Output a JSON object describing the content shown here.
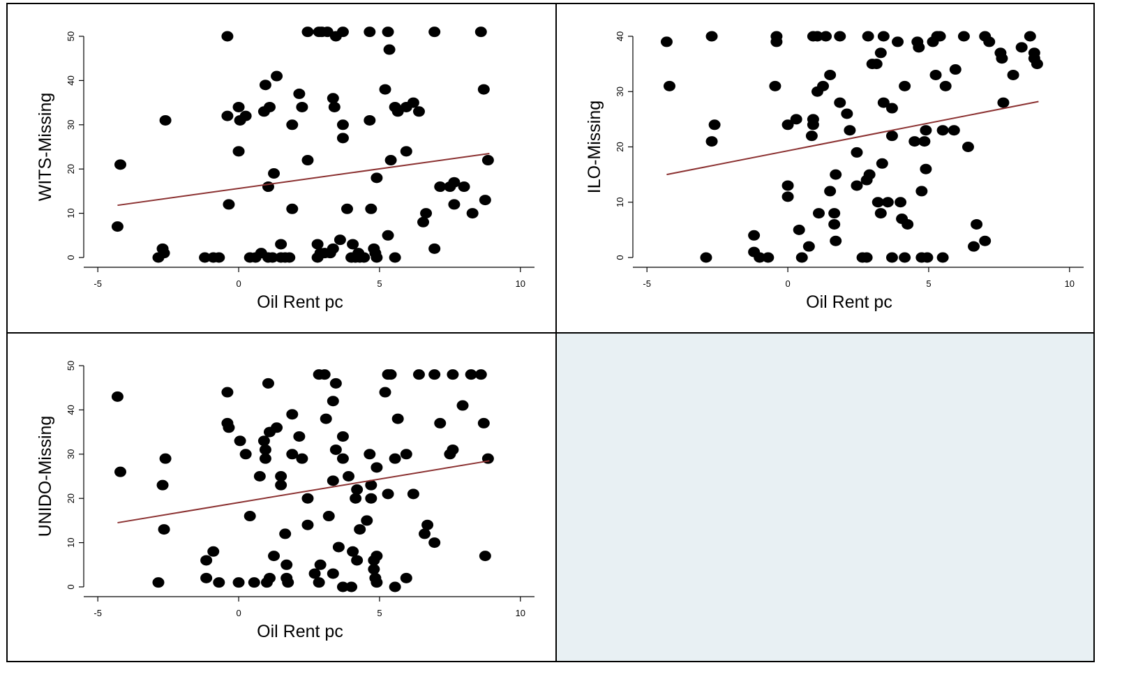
{
  "chart_data": [
    {
      "type": "scatter",
      "x_label": "Oil Rent pc",
      "y_label": "WITS-Missing",
      "color": "#000000",
      "x": [
        -4.3,
        -4.2,
        -2.6,
        -2.7,
        -2.65,
        -2.85,
        -0.4,
        -0.4,
        -0.35,
        -1.2,
        -0.9,
        -0.7,
        0.0,
        0.05,
        0.25,
        0.0,
        0.4,
        0.6,
        0.8,
        0.95,
        0.9,
        1.1,
        1.05,
        1.25,
        1.35,
        1.05,
        1.2,
        1.5,
        1.5,
        1.65,
        1.8,
        1.9,
        1.9,
        2.15,
        2.25,
        2.45,
        2.45,
        2.85,
        2.95,
        3.15,
        3.45,
        3.7,
        3.35,
        3.4,
        3.7,
        3.7,
        3.85,
        3.6,
        3.35,
        3.25,
        2.8,
        2.9,
        2.8,
        3.05,
        4.0,
        4.15,
        4.3,
        4.45,
        4.05,
        4.25,
        4.65,
        4.65,
        4.7,
        4.8,
        4.85,
        4.9,
        4.9,
        5.2,
        5.3,
        5.35,
        5.4,
        5.3,
        5.55,
        5.55,
        5.65,
        5.95,
        6.2,
        6.4,
        5.95,
        6.65,
        6.55,
        6.95,
        6.95,
        7.15,
        7.5,
        7.65,
        7.65,
        8.0,
        8.3,
        8.6,
        8.7,
        8.75,
        8.85
      ],
      "values": [
        7,
        21,
        31,
        2,
        1,
        0,
        50,
        32,
        12,
        0,
        0,
        0,
        34,
        31,
        32,
        24,
        0,
        0,
        1,
        39,
        33,
        34,
        16,
        19,
        41,
        0,
        0,
        3,
        0,
        0,
        0,
        30,
        11,
        37,
        34,
        22,
        51,
        51,
        51,
        51,
        50,
        51,
        36,
        34,
        30,
        27,
        11,
        4,
        2,
        1,
        3,
        1,
        0,
        1,
        0,
        0,
        0,
        0,
        3,
        1,
        51,
        31,
        11,
        2,
        1,
        0,
        18,
        38,
        51,
        47,
        22,
        5,
        0,
        34,
        33,
        34,
        35,
        33,
        24,
        10,
        8,
        51,
        2,
        16,
        16,
        17,
        12,
        16,
        10,
        51,
        38,
        13,
        22
      ],
      "fit": {
        "x": [
          -4.3,
          8.9
        ],
        "values": [
          11.8,
          23.5
        ],
        "color": "#8b3131"
      },
      "xlim": [
        -5.5,
        10.5
      ],
      "ylim": [
        0,
        50
      ],
      "xticks": [
        -5,
        0,
        5,
        10
      ],
      "yticks": [
        0,
        10,
        20,
        30,
        40,
        50
      ]
    },
    {
      "type": "scatter",
      "x_label": "Oil Rent pc",
      "y_label": "ILO-Missing",
      "color": "#000000",
      "x": [
        -4.3,
        -4.2,
        -2.7,
        -2.6,
        -2.7,
        -2.9,
        -1.2,
        -1.2,
        -1.0,
        -0.7,
        -0.45,
        -0.4,
        -0.4,
        0.0,
        0.3,
        0.0,
        0.0,
        0.4,
        0.5,
        0.75,
        0.9,
        1.05,
        1.35,
        1.85,
        0.9,
        0.9,
        0.85,
        1.05,
        1.25,
        1.5,
        1.1,
        1.5,
        1.7,
        1.65,
        1.65,
        1.7,
        1.85,
        2.1,
        2.2,
        2.45,
        2.45,
        2.65,
        2.8,
        2.8,
        2.9,
        2.85,
        3.0,
        3.15,
        3.3,
        3.4,
        3.35,
        3.2,
        3.55,
        3.3,
        3.4,
        3.7,
        3.7,
        3.7,
        3.9,
        4.0,
        4.05,
        4.25,
        4.15,
        4.15,
        4.5,
        4.6,
        4.65,
        4.75,
        4.85,
        4.9,
        4.9,
        4.75,
        4.95,
        5.15,
        5.3,
        5.4,
        5.25,
        5.5,
        5.5,
        5.6,
        5.9,
        5.95,
        6.25,
        6.4,
        6.7,
        6.6,
        7.0,
        7.0,
        7.15,
        7.55,
        7.6,
        7.65,
        8.0,
        8.3,
        8.6,
        8.75,
        8.75,
        8.85
      ],
      "values": [
        39,
        31,
        40,
        24,
        21,
        0,
        4,
        1,
        0,
        0,
        31,
        40,
        39,
        24,
        25,
        13,
        11,
        5,
        0,
        2,
        40,
        40,
        40,
        40,
        25,
        24,
        22,
        30,
        31,
        33,
        8,
        12,
        15,
        8,
        6,
        3,
        28,
        26,
        23,
        19,
        13,
        0,
        0,
        14,
        15,
        40,
        35,
        35,
        37,
        40,
        17,
        10,
        10,
        8,
        28,
        27,
        22,
        0,
        39,
        10,
        7,
        6,
        0,
        31,
        21,
        39,
        38,
        12,
        21,
        23,
        16,
        0,
        0,
        39,
        40,
        40,
        33,
        23,
        0,
        31,
        23,
        34,
        40,
        20,
        6,
        2,
        3,
        40,
        39,
        37,
        36,
        28,
        33,
        38,
        40,
        37,
        36,
        35
      ],
      "fit": {
        "x": [
          -4.3,
          8.9
        ],
        "values": [
          15.0,
          28.2
        ],
        "color": "#8b3131"
      },
      "xlim": [
        -5.5,
        10.5
      ],
      "ylim": [
        0,
        40
      ],
      "xticks": [
        -5,
        0,
        5,
        10
      ],
      "yticks": [
        0,
        10,
        20,
        30,
        40
      ]
    },
    {
      "type": "scatter",
      "x_label": "Oil Rent pc",
      "y_label": "UNIDO-Missing",
      "color": "#000000",
      "x": [
        -4.3,
        -4.2,
        -2.6,
        -2.7,
        -2.65,
        -2.85,
        -1.15,
        -1.15,
        -0.9,
        -0.7,
        -0.4,
        -0.4,
        -0.35,
        0.05,
        0.0,
        0.25,
        0.4,
        0.55,
        0.75,
        1.05,
        0.9,
        0.95,
        0.95,
        1.1,
        1.0,
        1.1,
        1.25,
        1.35,
        1.5,
        1.5,
        1.65,
        1.7,
        1.7,
        1.75,
        1.9,
        1.9,
        2.15,
        2.25,
        2.45,
        2.45,
        2.85,
        3.05,
        3.1,
        3.2,
        3.35,
        3.45,
        3.45,
        3.35,
        2.7,
        2.9,
        2.85,
        3.35,
        3.55,
        3.7,
        3.7,
        3.9,
        3.7,
        4.0,
        4.05,
        4.15,
        4.2,
        4.2,
        4.3,
        4.55,
        4.65,
        4.7,
        4.7,
        4.8,
        4.9,
        4.8,
        4.85,
        4.9,
        4.9,
        5.2,
        5.3,
        5.4,
        5.3,
        5.55,
        5.55,
        5.65,
        5.95,
        5.95,
        6.2,
        6.4,
        6.6,
        6.7,
        6.95,
        6.95,
        7.15,
        7.5,
        7.6,
        7.6,
        7.95,
        8.25,
        8.6,
        8.7,
        8.75,
        8.85
      ],
      "values": [
        43,
        26,
        29,
        23,
        13,
        1,
        2,
        6,
        8,
        1,
        44,
        37,
        36,
        33,
        1,
        30,
        16,
        1,
        25,
        46,
        33,
        31,
        29,
        35,
        1,
        2,
        7,
        36,
        25,
        23,
        12,
        5,
        2,
        1,
        39,
        30,
        34,
        29,
        20,
        14,
        48,
        48,
        38,
        16,
        42,
        46,
        31,
        24,
        3,
        5,
        1,
        3,
        9,
        29,
        34,
        25,
        0,
        0,
        8,
        20,
        22,
        6,
        13,
        15,
        30,
        23,
        20,
        6,
        7,
        4,
        2,
        1,
        27,
        44,
        48,
        48,
        21,
        0,
        29,
        38,
        30,
        2,
        21,
        48,
        12,
        14,
        48,
        10,
        37,
        30,
        31,
        48,
        41,
        48,
        48,
        37,
        7,
        29
      ],
      "fit": {
        "x": [
          -4.3,
          8.9
        ],
        "values": [
          14.5,
          28.5
        ],
        "color": "#8b3131"
      },
      "xlim": [
        -5.5,
        10.5
      ],
      "ylim": [
        0,
        50
      ],
      "xticks": [
        -5,
        0,
        5,
        10
      ],
      "yticks": [
        0,
        10,
        20,
        30,
        40,
        50
      ]
    }
  ]
}
